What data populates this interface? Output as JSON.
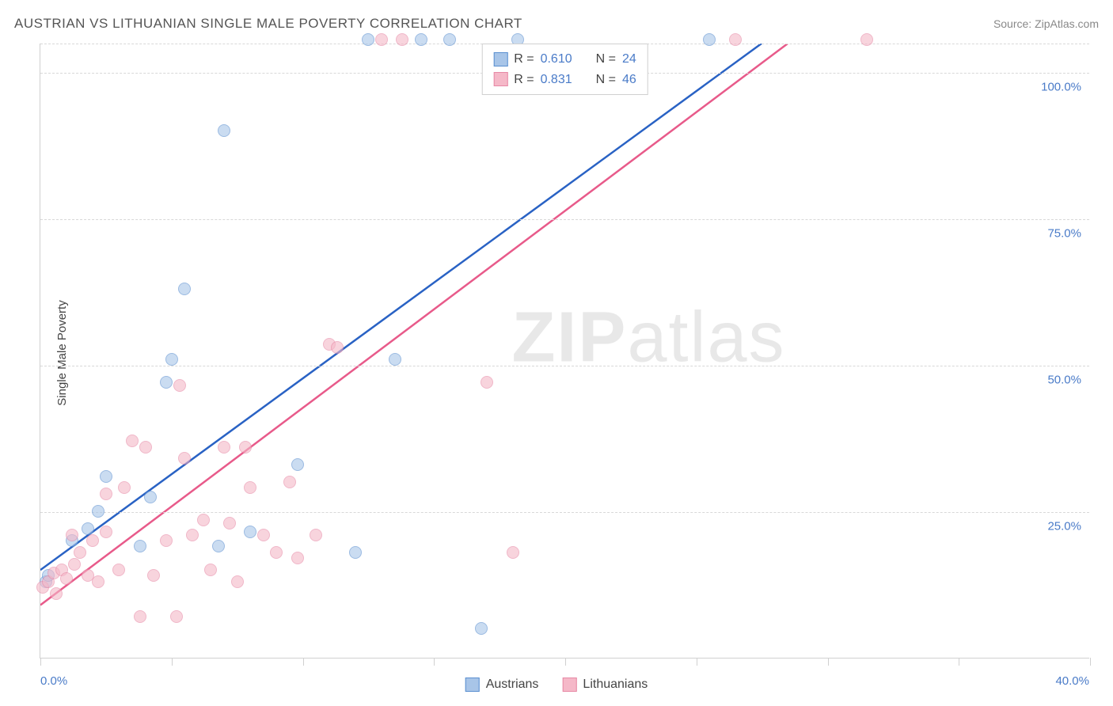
{
  "title": "AUSTRIAN VS LITHUANIAN SINGLE MALE POVERTY CORRELATION CHART",
  "source": "Source: ZipAtlas.com",
  "y_axis_label": "Single Male Poverty",
  "watermark_bold": "ZIP",
  "watermark_light": "atlas",
  "chart": {
    "type": "scatter",
    "xlim": [
      0,
      40
    ],
    "ylim": [
      0,
      105
    ],
    "x_ticks": [
      0,
      5,
      10,
      15,
      20,
      25,
      30,
      35,
      40
    ],
    "x_tick_labels": {
      "0": "0.0%",
      "40": "40.0%"
    },
    "y_gridlines": [
      25,
      50,
      75,
      100,
      105
    ],
    "y_tick_labels": {
      "25": "25.0%",
      "50": "50.0%",
      "75": "75.0%",
      "100": "100.0%"
    },
    "background_color": "#ffffff",
    "grid_color": "#d8d8d8",
    "axis_color": "#d0d0d0",
    "tick_label_color": "#4a7bc8",
    "title_color": "#555555",
    "title_fontsize": 17,
    "label_fontsize": 15,
    "point_radius": 8,
    "point_opacity": 0.6,
    "series": [
      {
        "name": "Austrians",
        "color_fill": "#a8c5e8",
        "color_stroke": "#5a8fd0",
        "R": "0.610",
        "N": "24",
        "trend": {
          "x1": 0,
          "y1": 15,
          "x2": 27.5,
          "y2": 105,
          "width": 2.5,
          "color": "#2962c4"
        },
        "points": [
          [
            0.2,
            13
          ],
          [
            0.3,
            14
          ],
          [
            1.2,
            20
          ],
          [
            1.8,
            22
          ],
          [
            2.2,
            25
          ],
          [
            2.5,
            31
          ],
          [
            3.8,
            19
          ],
          [
            4.2,
            27.5
          ],
          [
            4.8,
            47
          ],
          [
            5.0,
            51
          ],
          [
            5.5,
            63
          ],
          [
            6.8,
            19
          ],
          [
            7.0,
            90
          ],
          [
            8.0,
            21.5
          ],
          [
            9.8,
            33
          ],
          [
            12.0,
            18
          ],
          [
            12.5,
            105.5
          ],
          [
            13.5,
            51
          ],
          [
            14.5,
            105.5
          ],
          [
            15.6,
            105.5
          ],
          [
            16.8,
            5
          ],
          [
            18.2,
            105.5
          ],
          [
            25.5,
            105.5
          ]
        ]
      },
      {
        "name": "Lithuanians",
        "color_fill": "#f5b8c8",
        "color_stroke": "#e788a5",
        "R": "0.831",
        "N": "46",
        "trend": {
          "x1": 0,
          "y1": 9,
          "x2": 28.5,
          "y2": 105,
          "width": 2.5,
          "color": "#e85a8a"
        },
        "points": [
          [
            0.1,
            12
          ],
          [
            0.3,
            13
          ],
          [
            0.5,
            14.5
          ],
          [
            0.6,
            11
          ],
          [
            0.8,
            15
          ],
          [
            1.0,
            13.5
          ],
          [
            1.2,
            21
          ],
          [
            1.3,
            16
          ],
          [
            1.5,
            18
          ],
          [
            1.8,
            14
          ],
          [
            2.0,
            20
          ],
          [
            2.2,
            13
          ],
          [
            2.5,
            21.5
          ],
          [
            2.5,
            28
          ],
          [
            3.0,
            15
          ],
          [
            3.2,
            29
          ],
          [
            3.5,
            37
          ],
          [
            3.8,
            7
          ],
          [
            4.0,
            36
          ],
          [
            4.3,
            14
          ],
          [
            4.8,
            20
          ],
          [
            5.2,
            7
          ],
          [
            5.3,
            46.5
          ],
          [
            5.5,
            34
          ],
          [
            5.8,
            21
          ],
          [
            6.2,
            23.5
          ],
          [
            6.5,
            15
          ],
          [
            7.0,
            36
          ],
          [
            7.2,
            23
          ],
          [
            7.5,
            13
          ],
          [
            7.8,
            36
          ],
          [
            8.0,
            29
          ],
          [
            8.5,
            21
          ],
          [
            9.0,
            18
          ],
          [
            9.5,
            30
          ],
          [
            9.8,
            17
          ],
          [
            10.5,
            21
          ],
          [
            11.0,
            53.5
          ],
          [
            11.3,
            53
          ],
          [
            13.0,
            105.5
          ],
          [
            13.8,
            105.5
          ],
          [
            17.0,
            47
          ],
          [
            18.0,
            18
          ],
          [
            26.5,
            105.5
          ],
          [
            31.5,
            105.5
          ]
        ]
      }
    ]
  },
  "legend_top": {
    "rows": [
      {
        "swatch_fill": "#a8c5e8",
        "swatch_stroke": "#5a8fd0",
        "r_label": "R =",
        "r_val": "0.610",
        "n_label": "N =",
        "n_val": "24"
      },
      {
        "swatch_fill": "#f5b8c8",
        "swatch_stroke": "#e788a5",
        "r_label": "R =",
        "r_val": "0.831",
        "n_label": "N =",
        "n_val": "46"
      }
    ]
  },
  "legend_bottom": {
    "items": [
      {
        "swatch_fill": "#a8c5e8",
        "swatch_stroke": "#5a8fd0",
        "label": "Austrians"
      },
      {
        "swatch_fill": "#f5b8c8",
        "swatch_stroke": "#e788a5",
        "label": "Lithuanians"
      }
    ]
  }
}
